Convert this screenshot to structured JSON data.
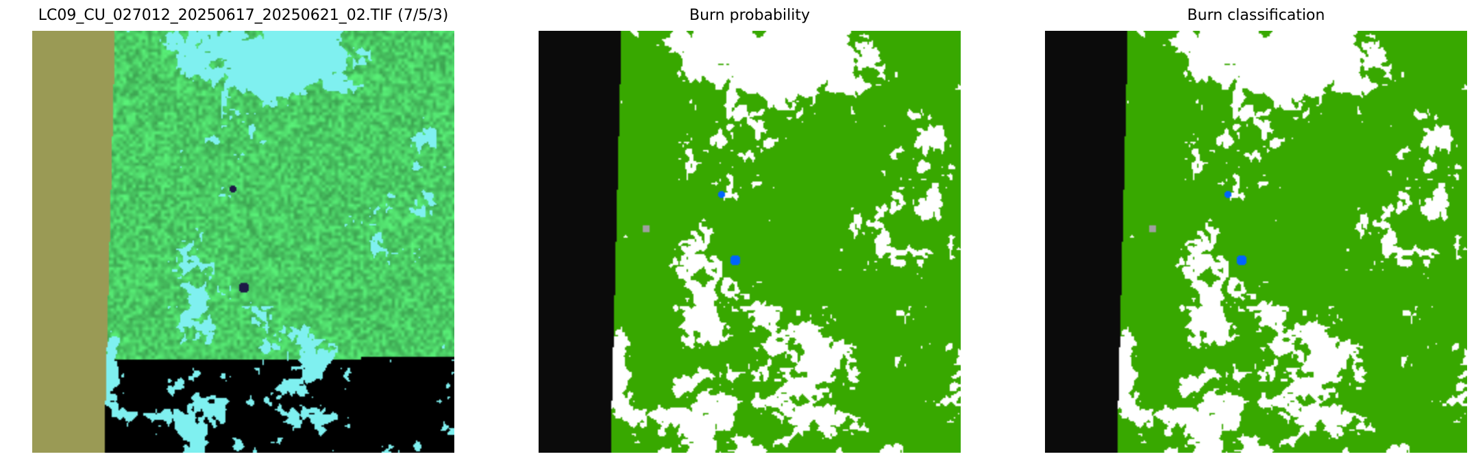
{
  "panels": [
    {
      "title": "LC09_CU_027012_20250617_20250621_02.TIF (7/5/3)",
      "kind": "rgb-composite"
    },
    {
      "title": "Burn probability",
      "kind": "classification"
    },
    {
      "title": "Burn classification",
      "kind": "classification"
    }
  ],
  "colors": {
    "nodata_rgb": "#9a9a55",
    "vegetation_rgb": "#4fd66a",
    "cloud_rgb": "#7ff0f0",
    "nodata_class": "#0b0b0b",
    "unburned": "#38a800",
    "water": "#0064ff",
    "cloud_class": "#ffffff",
    "other": "#a0a0a0"
  }
}
